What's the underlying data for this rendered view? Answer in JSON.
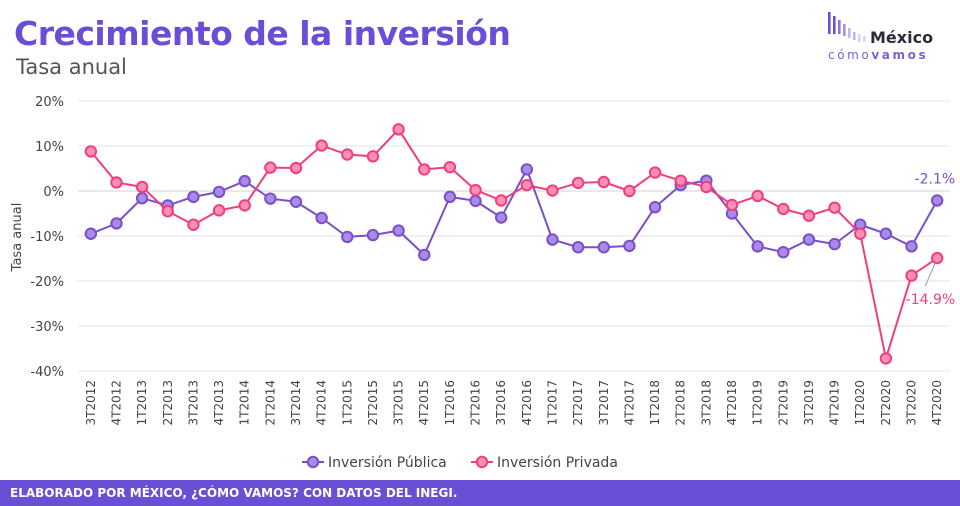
{
  "header": {
    "title": "Crecimiento de la inversión",
    "subtitle": "Tasa anual"
  },
  "logo": {
    "name": "México",
    "tagline_a": "cómo",
    "tagline_b": "vamos"
  },
  "footer": {
    "text": "ELABORADO POR MÉXICO, ¿CÓMO VAMOS? CON DATOS DEL INEGI."
  },
  "colors": {
    "accent": "#6a4fd6",
    "publica": "#7b4fc8",
    "privada": "#ef3f7f"
  },
  "chart_data": {
    "type": "line",
    "title": "",
    "xlabel": "",
    "ylabel": "Tasa anual",
    "ylim": [
      -40,
      20
    ],
    "yticks": [
      -40,
      -30,
      -20,
      -10,
      0,
      10,
      20
    ],
    "ytick_labels": [
      "-40%",
      "-30%",
      "-20%",
      "-10%",
      "0%",
      "10%",
      "20%"
    ],
    "grid": true,
    "legend_position": "bottom",
    "categories": [
      "3T2012",
      "4T2012",
      "1T2013",
      "2T2013",
      "3T2013",
      "4T2013",
      "1T2014",
      "2T2014",
      "3T2014",
      "4T2014",
      "1T2015",
      "2T2015",
      "3T2015",
      "4T2015",
      "1T2016",
      "2T2016",
      "3T2016",
      "4T2016",
      "1T2017",
      "2T2017",
      "3T2017",
      "4T2017",
      "1T2018",
      "2T2018",
      "3T2018",
      "4T2018",
      "1T2019",
      "2T2019",
      "3T2019",
      "4T2019",
      "1T2020",
      "2T2020",
      "3T2020",
      "4T2020"
    ],
    "series": [
      {
        "name": "Inversión Pública",
        "values": [
          -9.5,
          -7.2,
          -1.6,
          -3.2,
          -1.3,
          -0.2,
          2.2,
          -1.7,
          -2.4,
          -6.0,
          -10.2,
          -9.8,
          -8.8,
          -14.2,
          -1.3,
          -2.2,
          -5.9,
          4.8,
          -10.8,
          -12.5,
          -12.5,
          -12.2,
          -3.6,
          1.3,
          2.3,
          -5.0,
          -12.3,
          -13.6,
          -10.8,
          -11.8,
          -7.5,
          -9.5,
          -12.3,
          -2.1
        ]
      },
      {
        "name": "Inversión Privada",
        "values": [
          8.8,
          1.9,
          0.9,
          -4.5,
          -7.5,
          -4.3,
          -3.2,
          5.2,
          5.1,
          10.1,
          8.1,
          7.7,
          13.7,
          4.8,
          5.3,
          0.2,
          -2.1,
          1.3,
          0.1,
          1.8,
          2.0,
          0.0,
          4.1,
          2.3,
          0.9,
          -3.1,
          -1.1,
          -4.0,
          -5.5,
          -3.7,
          -9.5,
          -37.2,
          -18.8,
          -14.9
        ]
      }
    ],
    "annotations": [
      {
        "series": "Inversión Pública",
        "index": 33,
        "text": "-2.1%"
      },
      {
        "series": "Inversión Privada",
        "index": 33,
        "text": "-14.9%"
      }
    ]
  }
}
